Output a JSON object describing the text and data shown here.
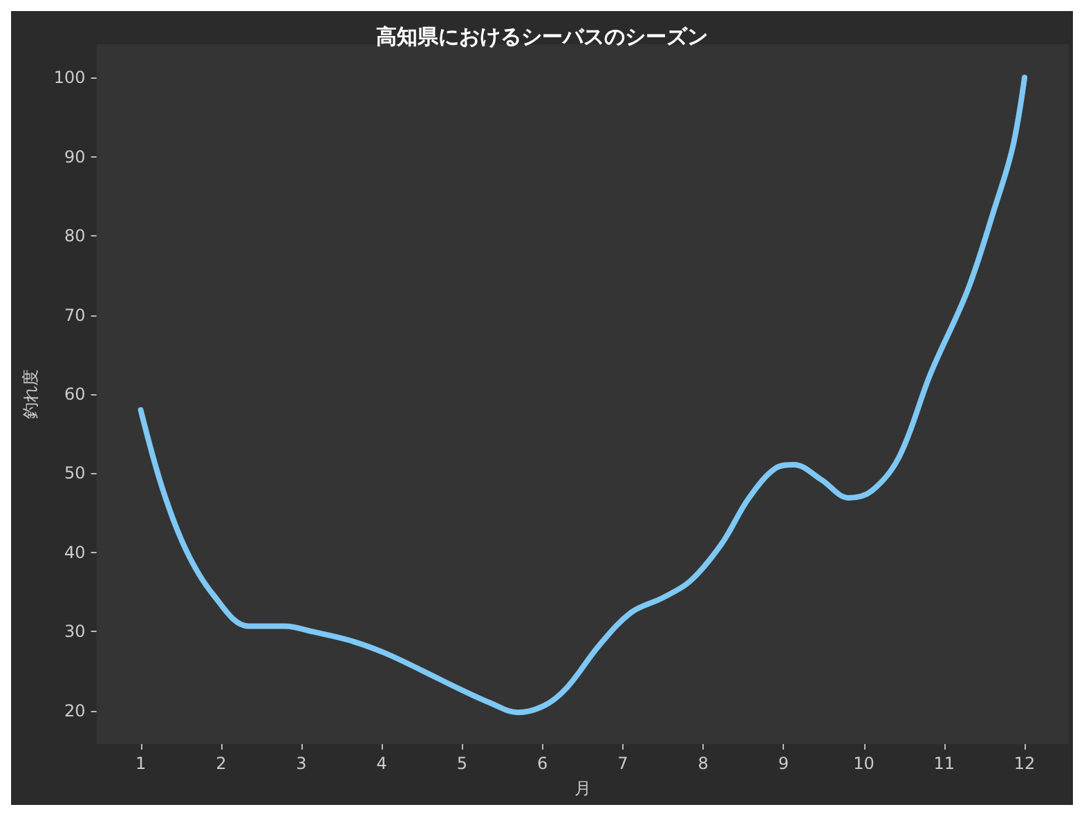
{
  "chart_data": {
    "type": "line",
    "title": "高知県におけるシーバスのシーズン",
    "xlabel": "月",
    "ylabel": "釣れ度",
    "series": [
      {
        "color": "#7ec8f5",
        "x": [
          1,
          1.27,
          1.56,
          1.9,
          2.34,
          2.8,
          3.14,
          3.6,
          4.04,
          4.5,
          4.96,
          5.35,
          5.69,
          6.03,
          6.31,
          6.7,
          7.1,
          7.5,
          7.84,
          8.23,
          8.57,
          8.91,
          9.13,
          9.47,
          9.81,
          10.1,
          10.44,
          10.83,
          11.29,
          11.63,
          11.85,
          12
        ],
        "values": [
          58,
          48.1,
          40.4,
          34.7,
          30.7,
          30.7,
          30,
          28.9,
          27.3,
          25.1,
          22.8,
          21,
          19.8,
          20.7,
          23,
          28.2,
          32.4,
          34.3,
          36.4,
          41.1,
          46.9,
          50.7,
          51.1,
          49.2,
          46.9,
          47.8,
          52.1,
          62.6,
          73.1,
          83.6,
          91.1,
          100
        ]
      }
    ],
    "xlim": [
      0.45,
      12.55
    ],
    "ylim": [
      15.8,
      104.2
    ],
    "xticks": [
      1,
      2,
      3,
      4,
      5,
      6,
      7,
      8,
      9,
      10,
      11,
      12
    ],
    "yticks": [
      20,
      30,
      40,
      50,
      60,
      70,
      80,
      90,
      100
    ],
    "line_style": "solid"
  }
}
